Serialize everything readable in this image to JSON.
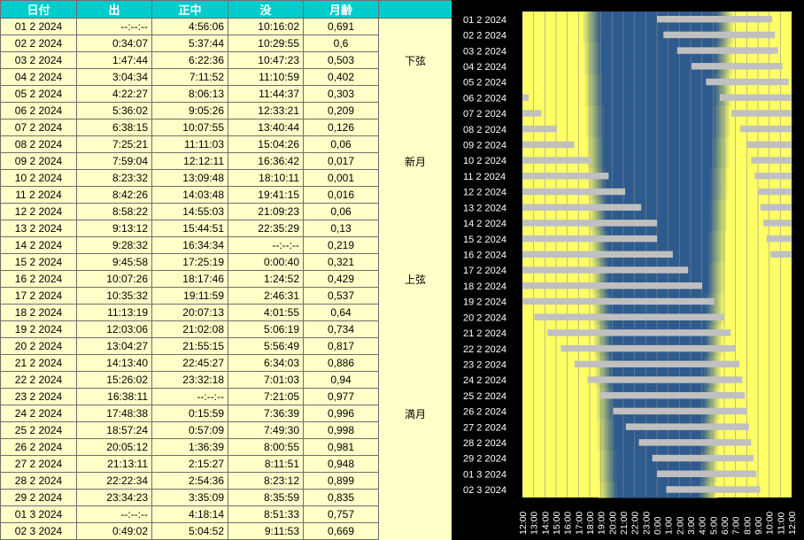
{
  "table": {
    "headers": [
      "日付",
      "出",
      "正中",
      "没",
      "月齢",
      ""
    ],
    "rows": [
      {
        "date": "01 2 2024",
        "rise": "--:--:--",
        "transit": "4:56:06",
        "set": "10:16:02",
        "age": "0,691",
        "event": ""
      },
      {
        "date": "02 2 2024",
        "rise": "0:34:07",
        "transit": "5:37:44",
        "set": "10:29:55",
        "age": "0,6",
        "event": ""
      },
      {
        "date": "03 2 2024",
        "rise": "1:47:44",
        "transit": "6:22:36",
        "set": "10:47:23",
        "age": "0,503",
        "event": "下弦"
      },
      {
        "date": "04 2 2024",
        "rise": "3:04:34",
        "transit": "7:11:52",
        "set": "11:10:59",
        "age": "0,402",
        "event": ""
      },
      {
        "date": "05 2 2024",
        "rise": "4:22:27",
        "transit": "8:06:13",
        "set": "11:44:37",
        "age": "0,303",
        "event": ""
      },
      {
        "date": "06 2 2024",
        "rise": "5:36:02",
        "transit": "9:05:26",
        "set": "12:33:21",
        "age": "0,209",
        "event": ""
      },
      {
        "date": "07 2 2024",
        "rise": "6:38:15",
        "transit": "10:07:55",
        "set": "13:40:44",
        "age": "0,126",
        "event": ""
      },
      {
        "date": "08 2 2024",
        "rise": "7:25:21",
        "transit": "11:11:03",
        "set": "15:04:26",
        "age": "0,06",
        "event": ""
      },
      {
        "date": "09 2 2024",
        "rise": "7:59:04",
        "transit": "12:12:11",
        "set": "16:36:42",
        "age": "0,017",
        "event": "新月"
      },
      {
        "date": "10 2 2024",
        "rise": "8:23:32",
        "transit": "13:09:48",
        "set": "18:10:11",
        "age": "0,001",
        "event": ""
      },
      {
        "date": "11 2 2024",
        "rise": "8:42:26",
        "transit": "14:03:48",
        "set": "19:41:15",
        "age": "0,016",
        "event": ""
      },
      {
        "date": "12 2 2024",
        "rise": "8:58:22",
        "transit": "14:55:03",
        "set": "21:09:23",
        "age": "0,06",
        "event": ""
      },
      {
        "date": "13 2 2024",
        "rise": "9:13:12",
        "transit": "15:44:51",
        "set": "22:35:29",
        "age": "0,13",
        "event": ""
      },
      {
        "date": "14 2 2024",
        "rise": "9:28:32",
        "transit": "16:34:34",
        "set": "--:--:--",
        "age": "0,219",
        "event": ""
      },
      {
        "date": "15 2 2024",
        "rise": "9:45:58",
        "transit": "17:25:19",
        "set": "0:00:40",
        "age": "0,321",
        "event": ""
      },
      {
        "date": "16 2 2024",
        "rise": "10:07:26",
        "transit": "18:17:46",
        "set": "1:24:52",
        "age": "0,429",
        "event": "上弦"
      },
      {
        "date": "17 2 2024",
        "rise": "10:35:32",
        "transit": "19:11:59",
        "set": "2:46:31",
        "age": "0,537",
        "event": ""
      },
      {
        "date": "18 2 2024",
        "rise": "11:13:19",
        "transit": "20:07:13",
        "set": "4:01:55",
        "age": "0,64",
        "event": ""
      },
      {
        "date": "19 2 2024",
        "rise": "12:03:06",
        "transit": "21:02:08",
        "set": "5:06:19",
        "age": "0,734",
        "event": ""
      },
      {
        "date": "20 2 2024",
        "rise": "13:04:27",
        "transit": "21:55:15",
        "set": "5:56:49",
        "age": "0,817",
        "event": ""
      },
      {
        "date": "21 2 2024",
        "rise": "14:13:40",
        "transit": "22:45:27",
        "set": "6:34:03",
        "age": "0,886",
        "event": ""
      },
      {
        "date": "22 2 2024",
        "rise": "15:26:02",
        "transit": "23:32:18",
        "set": "7:01:03",
        "age": "0,94",
        "event": ""
      },
      {
        "date": "23 2 2024",
        "rise": "16:38:11",
        "transit": "--:--:--",
        "set": "7:21:05",
        "age": "0,977",
        "event": ""
      },
      {
        "date": "24 2 2024",
        "rise": "17:48:38",
        "transit": "0:15:59",
        "set": "7:36:39",
        "age": "0,996",
        "event": "満月"
      },
      {
        "date": "25 2 2024",
        "rise": "18:57:24",
        "transit": "0:57:09",
        "set": "7:49:30",
        "age": "0,998",
        "event": ""
      },
      {
        "date": "26 2 2024",
        "rise": "20:05:12",
        "transit": "1:36:39",
        "set": "8:00:55",
        "age": "0,981",
        "event": ""
      },
      {
        "date": "27 2 2024",
        "rise": "21:13:11",
        "transit": "2:15:27",
        "set": "8:11:51",
        "age": "0,948",
        "event": ""
      },
      {
        "date": "28 2 2024",
        "rise": "22:22:34",
        "transit": "2:54:36",
        "set": "8:23:12",
        "age": "0,899",
        "event": ""
      },
      {
        "date": "29 2 2024",
        "rise": "23:34:23",
        "transit": "3:35:09",
        "set": "8:35:59",
        "age": "0,835",
        "event": ""
      },
      {
        "date": "01 3 2024",
        "rise": "--:--:--",
        "transit": "4:18:14",
        "set": "8:51:33",
        "age": "0,757",
        "event": ""
      },
      {
        "date": "02 3 2024",
        "rise": "0:49:02",
        "transit": "5:04:52",
        "set": "9:11:53",
        "age": "0,669",
        "event": ""
      }
    ]
  },
  "chart": {
    "colors": {
      "night": "#2e5b8e",
      "day": "#ffff66",
      "bar": "#c0c0c0",
      "background": "#000000",
      "grid": "#8a8a8a"
    },
    "row_labels": [
      "01 2 2024",
      "02 2 2024",
      "03 2 2024",
      "04 2 2024",
      "05 2 2024",
      "06 2 2024",
      "07 2 2024",
      "08 2 2024",
      "09 2 2024",
      "10 2 2024",
      "11 2 2024",
      "12 2 2024",
      "13 2 2024",
      "14 2 2024",
      "15 2 2024",
      "16 2 2024",
      "17 2 2024",
      "18 2 2024",
      "19 2 2024",
      "20 2 2024",
      "21 2 2024",
      "22 2 2024",
      "23 2 2024",
      "24 2 2024",
      "25 2 2024",
      "26 2 2024",
      "27 2 2024",
      "28 2 2024",
      "29 2 2024",
      "01 3 2024",
      "02 3 2024"
    ],
    "x_tick_labels": [
      "12:00",
      "13:00",
      "14:00",
      "15:00",
      "16:00",
      "17:00",
      "18:00",
      "19:00",
      "20:00",
      "21:00",
      "22:00",
      "23:00",
      "0:00",
      "1:00",
      "2:00",
      "3:00",
      "4:00",
      "5:00",
      "6:00",
      "7:00",
      "8:00",
      "9:00",
      "10:00",
      "11:00",
      "12:00"
    ],
    "x_hours_range": [
      12,
      36
    ],
    "moon_visible_hours": [
      [
        [
          24.0,
          34.27
        ]
      ],
      [
        [
          24.57,
          34.5
        ]
      ],
      [
        [
          25.8,
          34.79
        ]
      ],
      [
        [
          27.08,
          35.18
        ]
      ],
      [
        [
          28.37,
          35.74
        ]
      ],
      [
        [
          12.0,
          12.56
        ],
        [
          29.6,
          36.0
        ]
      ],
      [
        [
          12.0,
          13.68
        ],
        [
          30.64,
          36.0
        ]
      ],
      [
        [
          12.0,
          15.07
        ],
        [
          31.42,
          36.0
        ]
      ],
      [
        [
          12.0,
          16.61
        ],
        [
          31.98,
          36.0
        ]
      ],
      [
        [
          12.0,
          18.17
        ],
        [
          32.39,
          36.0
        ]
      ],
      [
        [
          12.0,
          19.69
        ],
        [
          32.71,
          36.0
        ]
      ],
      [
        [
          12.0,
          21.16
        ],
        [
          32.97,
          36.0
        ]
      ],
      [
        [
          12.0,
          22.59
        ],
        [
          33.22,
          36.0
        ]
      ],
      [
        [
          12.0,
          24.0
        ],
        [
          33.48,
          36.0
        ]
      ],
      [
        [
          12.0,
          24.01
        ],
        [
          33.77,
          36.0
        ]
      ],
      [
        [
          12.0,
          25.41
        ],
        [
          34.12,
          36.0
        ]
      ],
      [
        [
          12.0,
          26.78
        ]
      ],
      [
        [
          12.0,
          28.03
        ]
      ],
      [
        [
          12.05,
          29.11
        ]
      ],
      [
        [
          13.07,
          29.95
        ]
      ],
      [
        [
          14.23,
          30.57
        ]
      ],
      [
        [
          15.43,
          31.02
        ]
      ],
      [
        [
          16.64,
          31.35
        ]
      ],
      [
        [
          17.81,
          31.61
        ]
      ],
      [
        [
          18.96,
          31.83
        ]
      ],
      [
        [
          20.09,
          32.02
        ]
      ],
      [
        [
          21.22,
          32.2
        ]
      ],
      [
        [
          22.38,
          32.39
        ]
      ],
      [
        [
          23.57,
          32.6
        ]
      ],
      [
        [
          24.0,
          32.86
        ]
      ],
      [
        [
          24.82,
          33.2
        ]
      ]
    ],
    "night_band": {
      "start_hours": [
        17.3,
        17.3,
        17.4,
        17.4,
        17.5,
        17.5,
        17.6,
        17.6,
        17.7,
        17.7,
        17.8,
        17.8,
        17.9,
        17.9,
        18.0,
        18.0,
        18.1,
        18.1,
        18.2,
        18.2,
        18.3,
        18.3,
        18.4,
        18.4,
        18.5,
        18.5,
        18.6,
        18.6,
        18.7,
        18.7,
        18.8
      ],
      "end_hours": [
        30.9,
        30.9,
        30.8,
        30.8,
        30.7,
        30.7,
        30.6,
        30.6,
        30.5,
        30.5,
        30.4,
        30.4,
        30.3,
        30.3,
        30.2,
        30.2,
        30.1,
        30.1,
        30.0,
        30.0,
        29.9,
        29.9,
        29.8,
        29.8,
        29.7,
        29.7,
        29.6,
        29.6,
        29.5,
        29.5,
        29.4
      ]
    }
  }
}
